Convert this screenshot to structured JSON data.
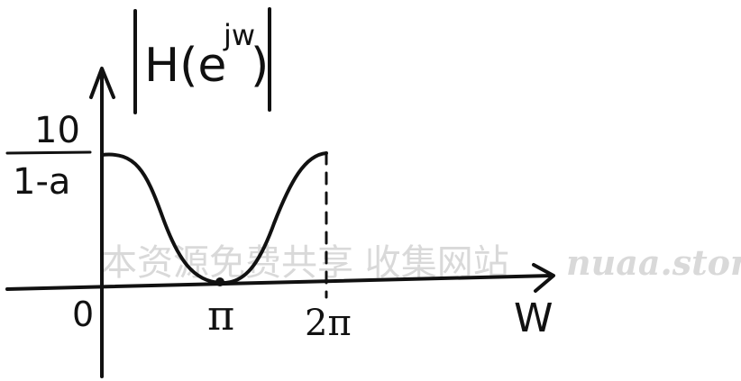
{
  "title": {
    "base": "H(e",
    "exponent": "jw",
    "close": ")"
  },
  "y_label": {
    "numerator": "10",
    "denominator": "1-a"
  },
  "x_label": "W",
  "ticks": {
    "origin": "0",
    "pi": "π",
    "two_pi": "2π"
  },
  "watermark": {
    "cn": "本资源免费共享 收集网站",
    "en": "nuaa.store"
  },
  "colors": {
    "ink": "#111111",
    "watermark": "#d9d9d9"
  }
}
